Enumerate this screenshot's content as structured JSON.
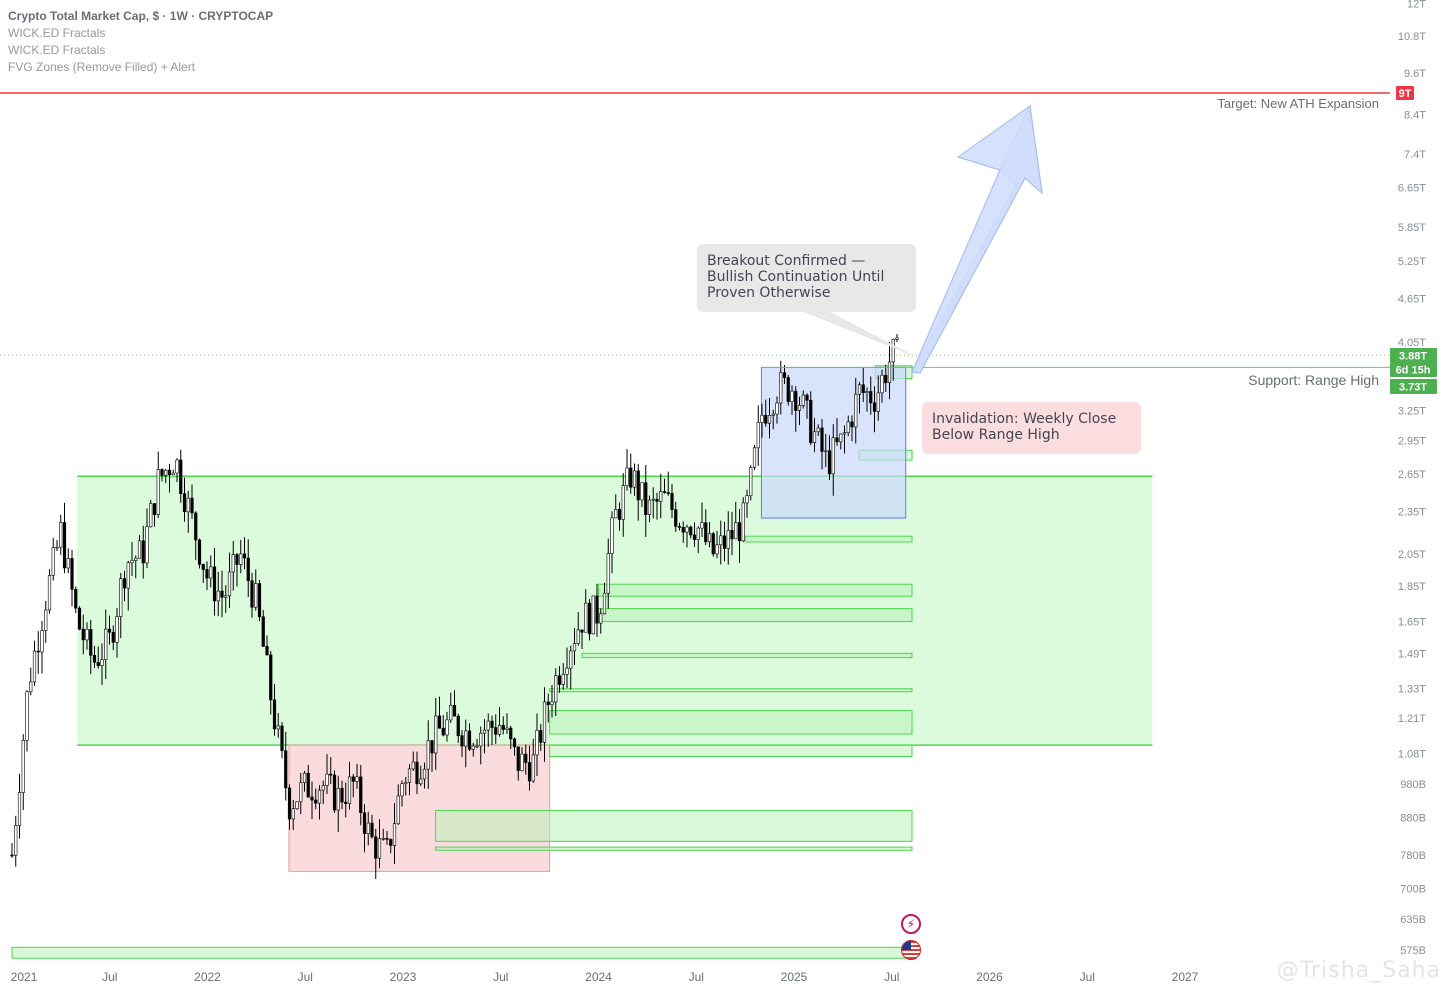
{
  "legend": {
    "title": "Crypto Total Market Cap, $ · 1W · CRYPTOCAP",
    "indicators": [
      "WICK.ED Fractals",
      "WICK.ED Fractals",
      "FVG Zones (Remove Filled) + Alert"
    ]
  },
  "annotations": {
    "breakout": "Breakout Confirmed —\nBullish Continuation Until\nProven Otherwise",
    "invalidation": "Invalidation: Weekly Close\nBelow Range High",
    "target": "Target: New ATH Expansion",
    "support": "Support: Range High"
  },
  "price_badges": {
    "target_level": "9T",
    "last_price": "3.88T",
    "countdown": "6d 15h",
    "support_level": "3.73T"
  },
  "watermark": "@Trisha_Saha",
  "colors": {
    "up": "#ffffff",
    "down": "#000000",
    "target_line": "#f23645",
    "zone_green": "#b7f5b7",
    "zone_red": "#f9d0d3",
    "zone_blue": "#c9d8fb",
    "badge_green": "#4caf50",
    "badge_red": "#f23645",
    "arrow_fill": "#cfdcfb",
    "arrow_stroke": "#aac0f5"
  },
  "chart_data": {
    "type": "candlestick",
    "title": "Crypto Total Market Cap, $ · 1W · CRYPTOCAP",
    "scale": "log",
    "y_ticks": [
      "12T",
      "10.8T",
      "9.6T",
      "8.4T",
      "7.4T",
      "6.65T",
      "5.85T",
      "5.25T",
      "4.65T",
      "4.05T",
      "3.25T",
      "2.95T",
      "2.65T",
      "2.35T",
      "2.05T",
      "1.85T",
      "1.65T",
      "1.49T",
      "1.33T",
      "1.21T",
      "1.08T",
      "980B",
      "880B",
      "780B",
      "700B",
      "635B",
      "575B"
    ],
    "x_ticks": [
      "2021",
      "Jul",
      "2022",
      "Jul",
      "2023",
      "Jul",
      "2024",
      "Jul",
      "2025",
      "Jul",
      "2026",
      "Jul",
      "2027"
    ],
    "ylim": [
      0.54,
      12.3
    ],
    "unit": "trillion USD",
    "levels": {
      "target": 9.0,
      "last": 3.88,
      "range_high": 3.73
    },
    "range_zone": {
      "from": "2021-05",
      "to": "2026-11",
      "low": 1.11,
      "high": 2.63
    },
    "bear_box": {
      "from": "2022-06",
      "to": "2023-10",
      "low": 0.74,
      "high": 1.11
    },
    "accumulation_box": {
      "from": "2024-11",
      "to": "2025-07",
      "low": 2.3,
      "high": 3.73
    },
    "fvg_zones": [
      {
        "low": 3.6,
        "high": 3.75
      },
      {
        "low": 2.77,
        "high": 2.86
      },
      {
        "low": 2.13,
        "high": 2.17
      },
      {
        "low": 1.79,
        "high": 1.86
      },
      {
        "low": 1.65,
        "high": 1.72
      },
      {
        "low": 1.47,
        "high": 1.49
      },
      {
        "low": 1.32,
        "high": 1.33
      },
      {
        "low": 1.15,
        "high": 1.24
      },
      {
        "low": 1.07,
        "high": 1.11
      },
      {
        "low": 0.815,
        "high": 0.9
      },
      {
        "low": 0.792,
        "high": 0.8
      },
      {
        "low": 0.56,
        "high": 0.58
      }
    ],
    "series": [
      {
        "name": "Crypto Total Market Cap",
        "x": [
          "2021-01",
          "2021-02",
          "2021-03",
          "2021-04",
          "2021-05",
          "2021-06",
          "2021-07",
          "2021-08",
          "2021-09",
          "2021-10",
          "2021-11",
          "2021-12",
          "2022-01",
          "2022-02",
          "2022-03",
          "2022-04",
          "2022-05",
          "2022-06",
          "2022-07",
          "2022-08",
          "2022-09",
          "2022-10",
          "2022-11",
          "2022-12",
          "2023-01",
          "2023-02",
          "2023-03",
          "2023-04",
          "2023-05",
          "2023-06",
          "2023-07",
          "2023-08",
          "2023-09",
          "2023-10",
          "2023-11",
          "2023-12",
          "2024-01",
          "2024-02",
          "2024-03",
          "2024-04",
          "2024-05",
          "2024-06",
          "2024-07",
          "2024-08",
          "2024-09",
          "2024-10",
          "2024-11",
          "2024-12",
          "2025-01",
          "2025-02",
          "2025-03",
          "2025-04",
          "2025-05",
          "2025-06",
          "2025-07"
        ],
        "close": [
          0.78,
          1.35,
          1.75,
          2.2,
          1.65,
          1.45,
          1.55,
          2.0,
          2.05,
          2.6,
          2.8,
          2.3,
          1.9,
          1.78,
          2.05,
          1.75,
          1.25,
          0.92,
          0.97,
          0.98,
          0.94,
          0.98,
          0.82,
          0.78,
          1.0,
          1.05,
          1.15,
          1.2,
          1.15,
          1.17,
          1.19,
          1.05,
          1.05,
          1.3,
          1.5,
          1.67,
          1.7,
          2.3,
          2.65,
          2.35,
          2.45,
          2.3,
          2.25,
          2.05,
          2.15,
          2.3,
          3.2,
          3.5,
          3.5,
          3.1,
          2.75,
          2.95,
          3.45,
          3.4,
          3.88
        ]
      }
    ]
  }
}
